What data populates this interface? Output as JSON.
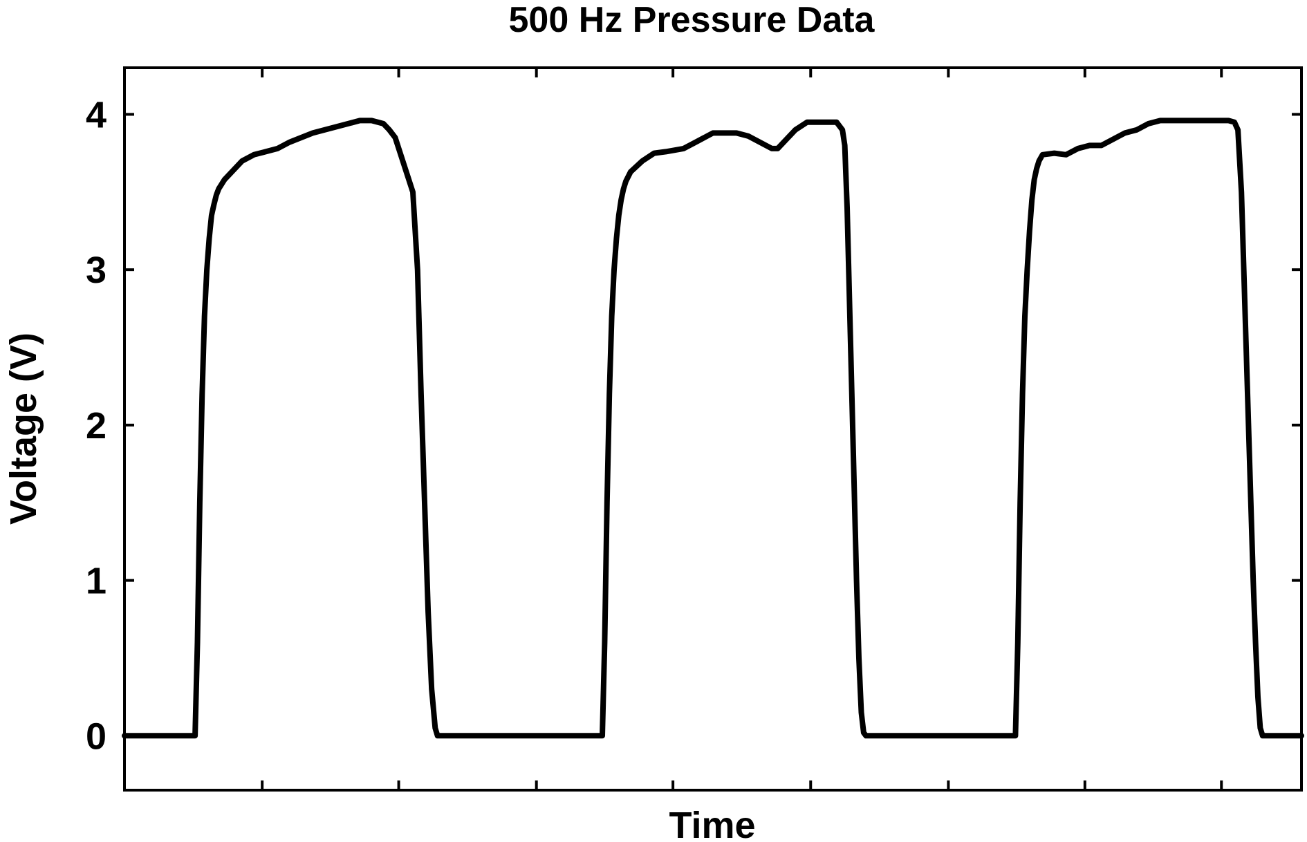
{
  "chart_data": {
    "type": "line",
    "title": "500 Hz Pressure Data",
    "xlabel": "Time",
    "ylabel": "Voltage (V)",
    "xlim": [
      0,
      100
    ],
    "ylim": [
      -0.35,
      4.3
    ],
    "yticks": [
      0,
      1,
      2,
      3,
      4
    ],
    "xticks_unlabeled": [
      11.7,
      23.3,
      35.0,
      46.6,
      58.3,
      70.0,
      81.6,
      93.2
    ],
    "grid": false,
    "legend": "none",
    "line_color": "#000000",
    "series": [
      {
        "x": [
          0,
          6.0,
          6.2,
          6.4,
          6.6,
          6.8,
          7.0,
          7.2,
          7.4,
          7.6,
          7.8,
          8.0,
          8.5,
          9.0,
          9.5,
          10.0,
          11.0,
          12.0,
          13.0,
          14.0,
          15.0,
          16.0,
          17.0,
          18.0,
          19.0,
          20.0,
          21.0,
          22.0,
          22.5,
          23.0,
          24.5,
          24.9,
          25.2,
          25.5,
          25.8,
          26.1,
          26.4,
          26.6,
          26.8,
          27.0,
          28.0,
          30.0,
          32.0,
          34.0,
          35.5,
          36.0,
          40.6,
          40.8,
          41.0,
          41.2,
          41.4,
          41.6,
          41.8,
          42.0,
          42.2,
          42.4,
          42.6,
          42.8,
          43.0,
          44.0,
          45.0,
          46.0,
          47.5,
          48.5,
          49.5,
          50.0,
          51.0,
          52.0,
          53.0,
          54.0,
          55.0,
          55.5,
          56.0,
          57.0,
          58.0,
          60.5,
          61.0,
          61.2,
          61.4,
          61.6,
          61.8,
          62.0,
          62.2,
          62.4,
          62.6,
          62.8,
          63.0,
          64.0,
          66.0,
          68.0,
          70.0,
          71.7,
          75.5,
          75.7,
          75.9,
          76.1,
          76.3,
          76.5,
          76.7,
          76.9,
          77.1,
          77.3,
          77.5,
          77.7,
          78.0,
          79.0,
          80.0,
          81.0,
          82.0,
          83.0,
          84.0,
          85.0,
          86.0,
          87.0,
          88.0,
          89.0,
          90.0,
          91.0,
          92.0,
          93.0,
          93.8,
          94.3,
          94.6,
          94.9,
          95.1,
          95.3,
          95.5,
          95.7,
          95.9,
          96.1,
          96.3,
          96.5,
          96.7,
          96.9,
          97.0,
          98.0,
          100.0
        ],
        "y": [
          0.0,
          0.0,
          0.6,
          1.5,
          2.2,
          2.7,
          3.0,
          3.2,
          3.35,
          3.42,
          3.48,
          3.52,
          3.58,
          3.62,
          3.66,
          3.7,
          3.74,
          3.76,
          3.78,
          3.82,
          3.85,
          3.88,
          3.9,
          3.92,
          3.94,
          3.96,
          3.96,
          3.94,
          3.9,
          3.85,
          3.5,
          3.0,
          2.2,
          1.5,
          0.8,
          0.3,
          0.05,
          0.0,
          0.0,
          0.0,
          0.0,
          0.0,
          0.0,
          0.0,
          0.0,
          0.0,
          0.0,
          0.6,
          1.5,
          2.2,
          2.7,
          3.0,
          3.2,
          3.35,
          3.45,
          3.52,
          3.57,
          3.6,
          3.63,
          3.7,
          3.75,
          3.76,
          3.78,
          3.82,
          3.86,
          3.88,
          3.88,
          3.88,
          3.86,
          3.82,
          3.78,
          3.78,
          3.82,
          3.9,
          3.95,
          3.95,
          3.9,
          3.8,
          3.4,
          2.8,
          2.2,
          1.6,
          1.0,
          0.5,
          0.15,
          0.02,
          0.0,
          0.0,
          0.0,
          0.0,
          0.0,
          0.0,
          0.0,
          0.0,
          0.6,
          1.5,
          2.2,
          2.7,
          3.0,
          3.25,
          3.45,
          3.58,
          3.65,
          3.7,
          3.74,
          3.75,
          3.74,
          3.78,
          3.8,
          3.8,
          3.84,
          3.88,
          3.9,
          3.94,
          3.96,
          3.96,
          3.96,
          3.96,
          3.96,
          3.96,
          3.96,
          3.95,
          3.9,
          3.5,
          3.0,
          2.5,
          2.0,
          1.5,
          1.0,
          0.6,
          0.25,
          0.05,
          0.0,
          0.0,
          0.0,
          0.0,
          0.0
        ]
      }
    ]
  }
}
